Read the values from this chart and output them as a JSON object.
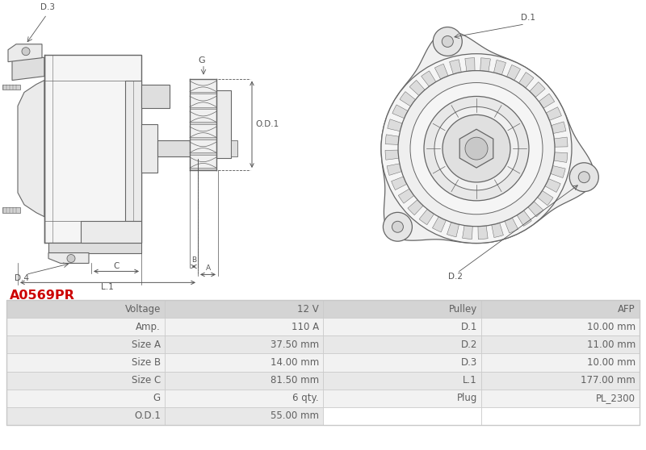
{
  "title_code": "A0569PR",
  "title_color": "#cc0000",
  "bg_color": "#ffffff",
  "table_data": [
    [
      "Voltage",
      "12 V",
      "Pulley",
      "AFP"
    ],
    [
      "Amp.",
      "110 A",
      "D.1",
      "10.00 mm"
    ],
    [
      "Size A",
      "37.50 mm",
      "D.2",
      "11.00 mm"
    ],
    [
      "Size B",
      "14.00 mm",
      "D.3",
      "10.00 mm"
    ],
    [
      "Size C",
      "81.50 mm",
      "L.1",
      "177.00 mm"
    ],
    [
      "G",
      "6 qty.",
      "Plug",
      "PL_2300"
    ],
    [
      "O.D.1",
      "55.00 mm",
      "",
      ""
    ]
  ],
  "row_colors": [
    "#e8e8e8",
    "#f2f2f2"
  ],
  "header_row_color": "#d4d4d4",
  "grid_color": "#c8c8c8",
  "text_color": "#606060",
  "font_size": 8.5,
  "label_color": "#555555"
}
